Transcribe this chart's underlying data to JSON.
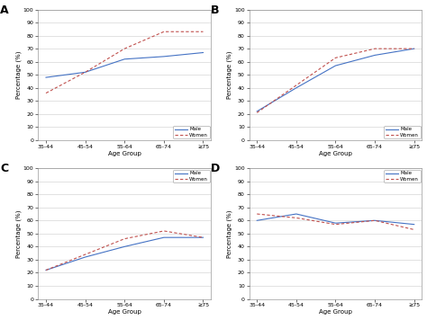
{
  "age_groups": [
    "35-44",
    "45-54",
    "55-64",
    "65-74",
    "≥75"
  ],
  "panels": {
    "A": {
      "male": [
        48,
        52,
        62,
        64,
        67
      ],
      "women": [
        36,
        52,
        70,
        83,
        83
      ],
      "ylim": [
        0,
        100
      ],
      "yticks": [
        0,
        10,
        20,
        30,
        40,
        50,
        60,
        70,
        80,
        90,
        100
      ],
      "legend_loc": "lower right"
    },
    "B": {
      "male": [
        22,
        40,
        57,
        65,
        70
      ],
      "women": [
        21,
        42,
        63,
        70,
        70
      ],
      "ylim": [
        0,
        100
      ],
      "yticks": [
        0,
        10,
        20,
        30,
        40,
        50,
        60,
        70,
        80,
        90,
        100
      ],
      "legend_loc": "lower right"
    },
    "C": {
      "male": [
        22,
        32,
        40,
        47,
        47
      ],
      "women": [
        22,
        34,
        46,
        52,
        47
      ],
      "ylim": [
        0,
        100
      ],
      "yticks": [
        0,
        10,
        20,
        30,
        40,
        50,
        60,
        70,
        80,
        90,
        100
      ],
      "legend_loc": "upper right"
    },
    "D": {
      "male": [
        60,
        65,
        58,
        60,
        57
      ],
      "women": [
        65,
        62,
        57,
        60,
        53
      ],
      "ylim": [
        0,
        100
      ],
      "yticks": [
        0,
        10,
        20,
        30,
        40,
        50,
        60,
        70,
        80,
        90,
        100
      ],
      "legend_loc": "upper right"
    }
  },
  "male_color": "#4472C4",
  "women_color": "#C0504D",
  "male_label": "Male",
  "women_label": "Women",
  "xlabel": "Age Group",
  "ylabel": "Percentage (%)",
  "panel_labels": [
    "A",
    "B",
    "C",
    "D"
  ]
}
